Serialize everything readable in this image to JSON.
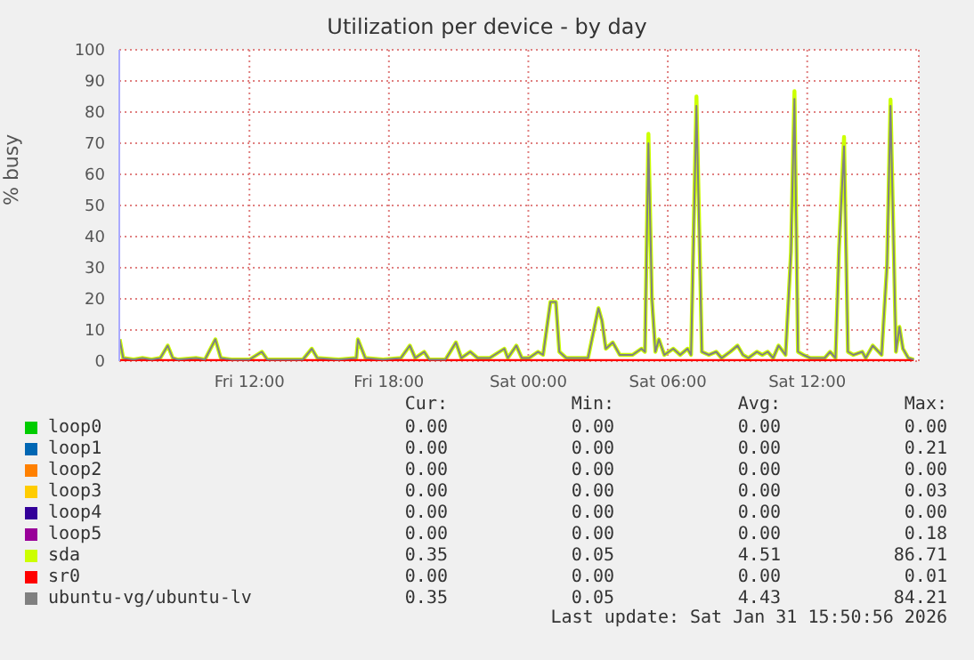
{
  "chart_data": {
    "type": "line",
    "title": "Utilization per device - by day",
    "ylabel": "% busy",
    "xlim": [
      "2026-01-30T06:24",
      "2026-01-31T16:48"
    ],
    "ylim": [
      0,
      100
    ],
    "xticks": [
      {
        "value": "2026-01-30T12:00",
        "label": "Fri 12:00"
      },
      {
        "value": "2026-01-30T18:00",
        "label": "Fri 18:00"
      },
      {
        "value": "2026-01-31T00:00",
        "label": "Sat 00:00"
      },
      {
        "value": "2026-01-31T06:00",
        "label": "Sat 06:00"
      },
      {
        "value": "2026-01-31T12:00",
        "label": "Sat 12:00"
      }
    ],
    "yticks": [
      0,
      10,
      20,
      30,
      40,
      50,
      60,
      70,
      80,
      90,
      100
    ],
    "grid": true,
    "legend": "bottom",
    "marker": "none",
    "line_style": "solid",
    "x": [
      "2026-01-30T06:25",
      "2026-01-30T06:34",
      "2026-01-30T07:01",
      "2026-01-30T07:24",
      "2026-01-30T07:47",
      "2026-01-30T08:10",
      "2026-01-30T08:29",
      "2026-01-30T08:42",
      "2026-01-30T08:56",
      "2026-01-30T09:42",
      "2026-01-30T10:05",
      "2026-01-30T10:32",
      "2026-01-30T10:46",
      "2026-01-30T11:14",
      "2026-01-30T12:00",
      "2026-01-30T12:32",
      "2026-01-30T12:46",
      "2026-01-30T13:32",
      "2026-01-30T14:18",
      "2026-01-30T14:41",
      "2026-01-30T14:55",
      "2026-01-30T15:50",
      "2026-01-30T16:36",
      "2026-01-30T16:40",
      "2026-01-30T16:59",
      "2026-01-30T17:45",
      "2026-01-30T18:31",
      "2026-01-30T18:54",
      "2026-01-30T19:08",
      "2026-01-30T19:31",
      "2026-01-30T19:44",
      "2026-01-30T20:26",
      "2026-01-30T20:53",
      "2026-01-30T21:07",
      "2026-01-30T21:30",
      "2026-01-30T21:49",
      "2026-01-30T22:20",
      "2026-01-30T22:58",
      "2026-01-30T23:07",
      "2026-01-30T23:29",
      "2026-01-30T23:43",
      "2026-01-31T00:02",
      "2026-01-31T00:25",
      "2026-01-31T00:38",
      "2026-01-31T00:57",
      "2026-01-31T01:11",
      "2026-01-31T01:20",
      "2026-01-31T01:38",
      "2026-01-31T02:11",
      "2026-01-31T02:34",
      "2026-01-31T03:01",
      "2026-01-31T03:10",
      "2026-01-31T03:20",
      "2026-01-31T03:38",
      "2026-01-31T03:56",
      "2026-01-31T04:29",
      "2026-01-31T04:52",
      "2026-01-31T05:01",
      "2026-01-31T05:10",
      "2026-01-31T05:19",
      "2026-01-31T05:28",
      "2026-01-31T05:37",
      "2026-01-31T05:51",
      "2026-01-31T06:14",
      "2026-01-31T06:32",
      "2026-01-31T06:51",
      "2026-01-31T07:00",
      "2026-01-31T07:14",
      "2026-01-31T07:28",
      "2026-01-31T07:46",
      "2026-01-31T08:05",
      "2026-01-31T08:19",
      "2026-01-31T08:41",
      "2026-01-31T09:00",
      "2026-01-31T09:14",
      "2026-01-31T09:28",
      "2026-01-31T09:50",
      "2026-01-31T10:04",
      "2026-01-31T10:18",
      "2026-01-31T10:32",
      "2026-01-31T10:46",
      "2026-01-31T11:04",
      "2026-01-31T11:18",
      "2026-01-31T11:27",
      "2026-01-31T11:36",
      "2026-01-31T11:50",
      "2026-01-31T12:08",
      "2026-01-31T12:31",
      "2026-01-31T12:45",
      "2026-01-31T12:59",
      "2026-01-31T13:13",
      "2026-01-31T13:22",
      "2026-01-31T13:35",
      "2026-01-31T13:45",
      "2026-01-31T13:59",
      "2026-01-31T14:22",
      "2026-01-31T14:31",
      "2026-01-31T14:49",
      "2026-01-31T15:12",
      "2026-01-31T15:26",
      "2026-01-31T15:35",
      "2026-01-31T15:49",
      "2026-01-31T15:58",
      "2026-01-31T16:07",
      "2026-01-31T16:21",
      "2026-01-31T16:35"
    ],
    "series": [
      {
        "name": "loop0",
        "color": "#00cc00",
        "values": [
          null,
          null,
          null,
          null,
          null,
          null,
          null,
          null,
          null,
          null,
          null,
          null,
          null,
          null,
          null,
          null,
          null,
          null,
          null,
          null,
          null,
          null,
          null,
          null,
          null,
          null,
          null,
          null,
          null,
          null,
          null,
          null,
          null,
          null,
          null,
          null,
          null,
          null,
          null,
          null,
          null,
          null,
          null,
          null,
          null,
          null,
          null,
          null,
          null,
          null,
          null,
          null,
          null,
          null,
          null,
          null,
          null,
          null,
          null,
          null,
          null,
          null,
          null,
          null,
          null,
          null,
          null,
          null,
          null,
          null,
          null,
          null,
          null,
          null,
          null,
          null,
          null,
          null,
          null,
          null,
          null,
          null,
          null,
          null,
          null,
          null,
          null,
          null,
          null,
          null,
          null,
          null,
          null,
          null,
          null,
          null,
          null,
          null,
          null,
          null,
          null,
          null,
          null,
          null,
          null,
          null
        ]
      },
      {
        "name": "loop1",
        "color": "#0066b3",
        "values": [
          null,
          null,
          null,
          null,
          null,
          null,
          null,
          null,
          null,
          null,
          null,
          null,
          null,
          null,
          null,
          null,
          null,
          null,
          null,
          null,
          null,
          null,
          null,
          null,
          null,
          null,
          null,
          null,
          null,
          null,
          null,
          null,
          null,
          null,
          null,
          null,
          null,
          null,
          null,
          null,
          null,
          null,
          null,
          null,
          null,
          null,
          null,
          null,
          null,
          null,
          null,
          null,
          null,
          null,
          null,
          null,
          null,
          null,
          null,
          null,
          null,
          null,
          null,
          null,
          null,
          null,
          null,
          null,
          null,
          null,
          null,
          null,
          null,
          null,
          null,
          null,
          null,
          null,
          null,
          null,
          null,
          null,
          null,
          null,
          null,
          null,
          null,
          null,
          null,
          null,
          null,
          null,
          null,
          null,
          null,
          null,
          null,
          null,
          null,
          null,
          null,
          null,
          null,
          null,
          null,
          null
        ]
      },
      {
        "name": "loop2",
        "color": "#ff8000",
        "values": [
          null,
          null,
          null,
          null,
          null,
          null,
          null,
          null,
          null,
          null,
          null,
          null,
          null,
          null,
          null,
          null,
          null,
          null,
          null,
          null,
          null,
          null,
          null,
          null,
          null,
          null,
          null,
          null,
          null,
          null,
          null,
          null,
          null,
          null,
          null,
          null,
          null,
          null,
          null,
          null,
          null,
          null,
          null,
          null,
          null,
          null,
          null,
          null,
          null,
          null,
          null,
          null,
          null,
          null,
          null,
          null,
          null,
          null,
          null,
          null,
          null,
          null,
          null,
          null,
          null,
          null,
          null,
          null,
          null,
          null,
          null,
          null,
          null,
          null,
          null,
          null,
          null,
          null,
          null,
          null,
          null,
          null,
          null,
          null,
          null,
          null,
          null,
          null,
          null,
          null,
          null,
          null,
          null,
          null,
          null,
          null,
          null,
          null,
          null,
          null,
          null,
          null,
          null,
          null,
          null,
          null
        ]
      },
      {
        "name": "loop3",
        "color": "#ffcc00",
        "values": [
          null,
          null,
          null,
          null,
          null,
          null,
          null,
          null,
          null,
          null,
          null,
          null,
          null,
          null,
          null,
          null,
          null,
          null,
          null,
          null,
          null,
          null,
          null,
          null,
          null,
          null,
          null,
          null,
          null,
          null,
          null,
          null,
          null,
          null,
          null,
          null,
          null,
          null,
          null,
          null,
          null,
          null,
          null,
          null,
          null,
          null,
          null,
          null,
          null,
          null,
          null,
          null,
          null,
          null,
          null,
          null,
          null,
          null,
          null,
          null,
          null,
          null,
          null,
          null,
          null,
          null,
          null,
          null,
          null,
          null,
          null,
          null,
          null,
          null,
          null,
          null,
          null,
          null,
          null,
          null,
          null,
          null,
          null,
          null,
          null,
          null,
          null,
          null,
          null,
          null,
          null,
          null,
          null,
          null,
          null,
          null,
          null,
          null,
          null,
          null,
          null,
          null,
          null,
          null,
          null,
          null
        ]
      },
      {
        "name": "loop4",
        "color": "#330099",
        "values": [
          null,
          null,
          null,
          null,
          null,
          null,
          null,
          null,
          null,
          null,
          null,
          null,
          null,
          null,
          null,
          null,
          null,
          null,
          null,
          null,
          null,
          null,
          null,
          null,
          null,
          null,
          null,
          null,
          null,
          null,
          null,
          null,
          null,
          null,
          null,
          null,
          null,
          null,
          null,
          null,
          null,
          null,
          null,
          null,
          null,
          null,
          null,
          null,
          null,
          null,
          null,
          null,
          null,
          null,
          null,
          null,
          null,
          null,
          null,
          null,
          null,
          null,
          null,
          null,
          null,
          null,
          null,
          null,
          null,
          null,
          null,
          null,
          null,
          null,
          null,
          null,
          null,
          null,
          null,
          null,
          null,
          null,
          null,
          null,
          null,
          null,
          null,
          null,
          null,
          null,
          null,
          null,
          null,
          null,
          null,
          null,
          null,
          null,
          null,
          null,
          null,
          null,
          null,
          null,
          null,
          null
        ]
      },
      {
        "name": "loop5",
        "color": "#990099",
        "values": [
          null,
          null,
          null,
          null,
          null,
          null,
          null,
          null,
          null,
          null,
          null,
          null,
          null,
          null,
          null,
          null,
          null,
          null,
          null,
          null,
          null,
          null,
          null,
          null,
          null,
          null,
          null,
          null,
          null,
          null,
          null,
          null,
          null,
          null,
          null,
          null,
          null,
          null,
          null,
          null,
          null,
          null,
          null,
          null,
          null,
          null,
          null,
          null,
          null,
          null,
          null,
          null,
          null,
          null,
          null,
          null,
          null,
          null,
          null,
          null,
          null,
          null,
          null,
          null,
          null,
          null,
          null,
          null,
          null,
          null,
          null,
          null,
          null,
          null,
          null,
          null,
          null,
          null,
          null,
          null,
          null,
          null,
          null,
          null,
          null,
          null,
          null,
          null,
          null,
          null,
          null,
          null,
          null,
          null,
          null,
          null,
          null,
          null,
          null,
          null,
          null,
          null,
          null,
          null,
          null,
          null
        ]
      },
      {
        "name": "sda",
        "color": "#ccff00",
        "values": [
          7,
          1,
          0.5,
          1,
          0.5,
          1,
          5,
          1,
          0.5,
          1,
          0.5,
          7,
          1,
          0.5,
          0.5,
          3,
          0.5,
          0.5,
          0.5,
          4,
          1,
          0.5,
          1,
          7,
          1,
          0.5,
          1,
          5,
          1,
          3,
          0.5,
          0.5,
          6,
          1,
          3,
          1,
          1,
          4,
          1,
          5,
          1,
          1,
          3,
          2,
          19,
          19,
          3,
          1,
          1,
          1,
          17,
          13,
          4,
          6,
          2,
          2,
          4,
          3,
          73,
          20,
          3,
          7,
          2,
          4,
          2,
          4,
          2,
          85,
          3,
          2,
          3,
          1,
          3,
          5,
          2,
          1,
          3,
          2,
          3,
          1,
          5,
          2,
          35,
          86.71,
          3,
          2,
          1,
          1,
          1,
          3,
          1,
          36,
          72,
          3,
          2,
          3,
          1,
          5,
          2,
          31,
          84,
          3,
          11,
          4,
          1,
          0.5
        ]
      },
      {
        "name": "sr0",
        "color": "#ff0000",
        "x": [
          "2026-01-30T06:25",
          "2026-01-31T16:35"
        ],
        "values": [
          0,
          0
        ]
      },
      {
        "name": "ubuntu-vg/ubuntu-lv",
        "color": "#808080",
        "values": [
          7,
          1,
          0.5,
          1,
          0.5,
          1,
          5,
          1,
          0.5,
          1,
          0.5,
          7,
          1,
          0.5,
          0.5,
          3,
          0.5,
          0.5,
          0.5,
          4,
          1,
          0.5,
          1,
          7,
          1,
          0.5,
          1,
          5,
          1,
          3,
          0.5,
          0.5,
          6,
          1,
          3,
          1,
          1,
          4,
          1,
          5,
          1,
          1,
          3,
          2,
          19,
          19,
          3,
          1,
          1,
          1,
          17,
          13,
          4,
          6,
          2,
          2,
          4,
          3,
          70,
          20,
          3,
          7,
          2,
          4,
          2,
          4,
          2,
          82,
          3,
          2,
          3,
          1,
          3,
          5,
          2,
          1,
          3,
          2,
          3,
          1,
          5,
          2,
          35,
          84.21,
          3,
          2,
          1,
          1,
          1,
          3,
          1,
          36,
          69,
          3,
          2,
          3,
          1,
          5,
          2,
          31,
          82,
          3,
          11,
          4,
          1,
          0.5
        ]
      }
    ],
    "annotations": [
      "Cur:",
      "Min:",
      "Avg:",
      "Max:",
      "0.00",
      "0.00",
      "0.00",
      "0.00",
      "0.00",
      "0.00",
      "0.00",
      "0.21",
      "0.00",
      "0.00",
      "0.00",
      "0.00",
      "0.00",
      "0.00",
      "0.00",
      "0.03",
      "0.00",
      "0.00",
      "0.00",
      "0.00",
      "0.00",
      "0.00",
      "0.00",
      "0.18",
      "0.35",
      "0.05",
      "4.51",
      "86.71",
      "0.00",
      "0.00",
      "0.00",
      "0.01",
      "0.35",
      "0.05",
      "4.43",
      "84.21",
      "Last update: Sat Jan 31 15:50:56 2026"
    ]
  }
}
